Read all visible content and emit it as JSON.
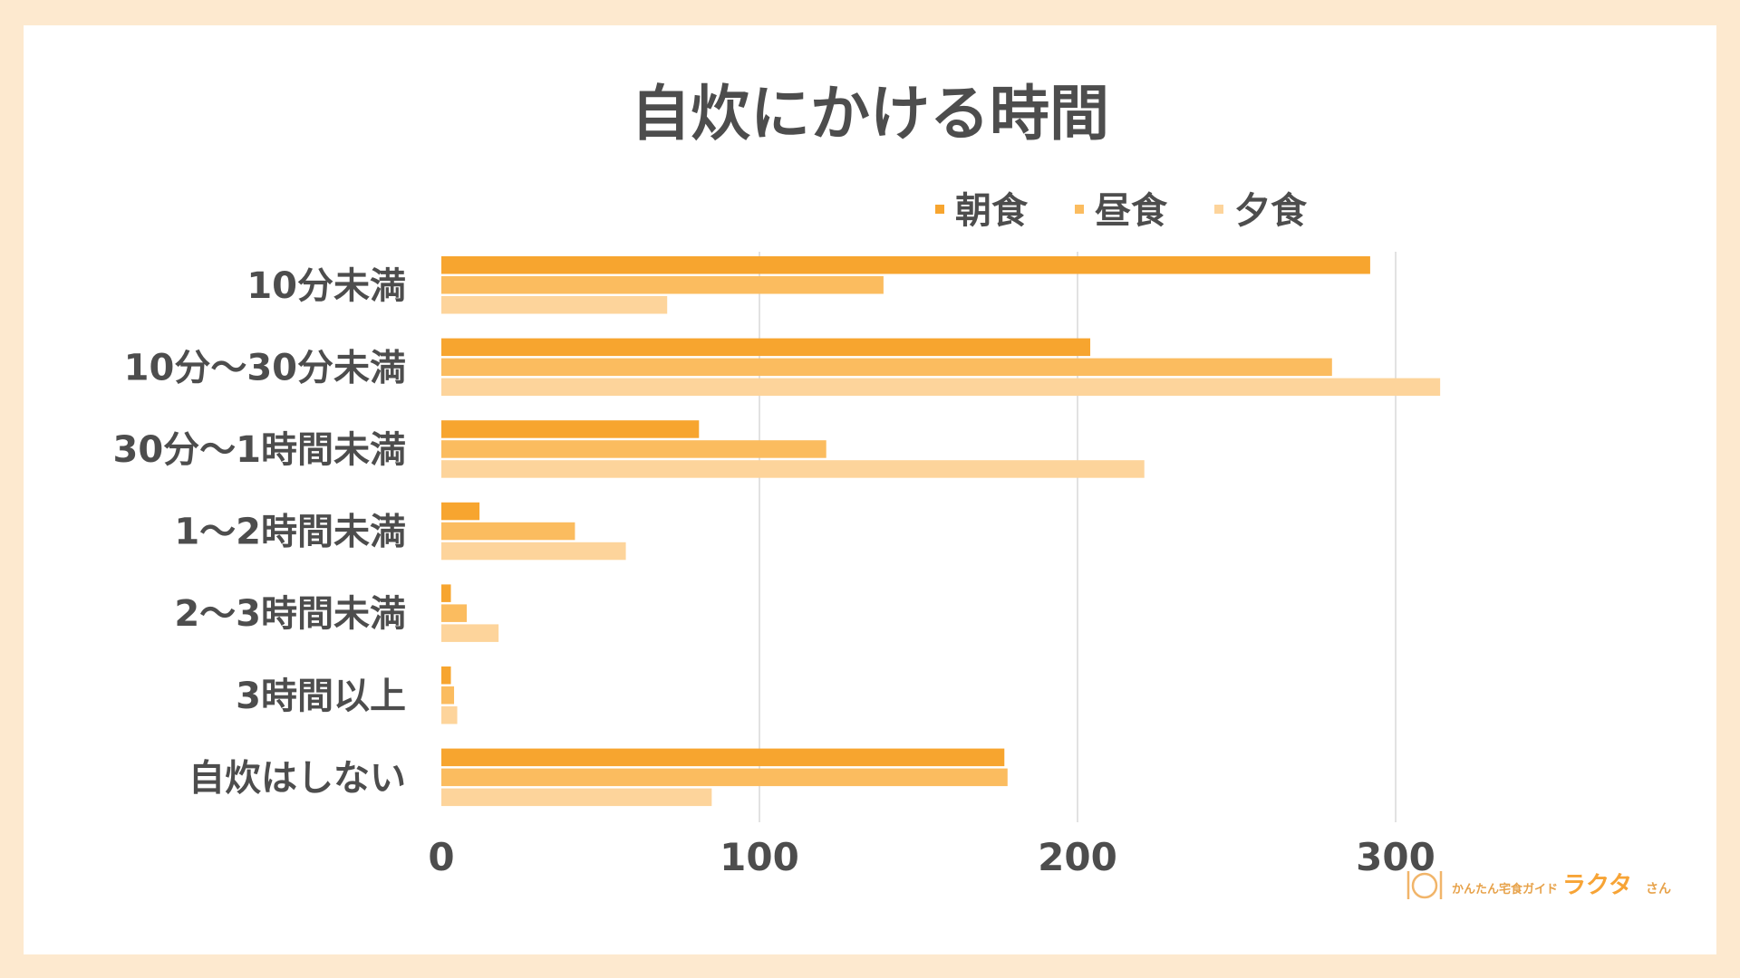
{
  "chart_data": {
    "type": "bar",
    "orientation": "horizontal",
    "title": "自炊にかける時間",
    "categories": [
      "10分未満",
      "10分〜30分未満",
      "30分〜1時間未満",
      "1〜2時間未満",
      "2〜3時間未満",
      "3時間以上",
      "自炊はしない"
    ],
    "series": [
      {
        "name": "朝食",
        "color": "#f7a52f",
        "values": [
          292,
          204,
          81,
          12,
          3,
          3,
          177
        ]
      },
      {
        "name": "昼食",
        "color": "#fbbc5f",
        "values": [
          139,
          280,
          121,
          42,
          8,
          4,
          178
        ]
      },
      {
        "name": "夕食",
        "color": "#fdd49b",
        "values": [
          71,
          314,
          221,
          58,
          18,
          5,
          85
        ]
      }
    ],
    "xlim": [
      0,
      350
    ],
    "xticks": [
      "0",
      "100",
      "200",
      "300"
    ],
    "grid": true,
    "legend_position": "top-right"
  },
  "watermark": {
    "small_text": "かんたん宅食ガイド",
    "brand": "ラクタ",
    "suffix": "さん"
  }
}
